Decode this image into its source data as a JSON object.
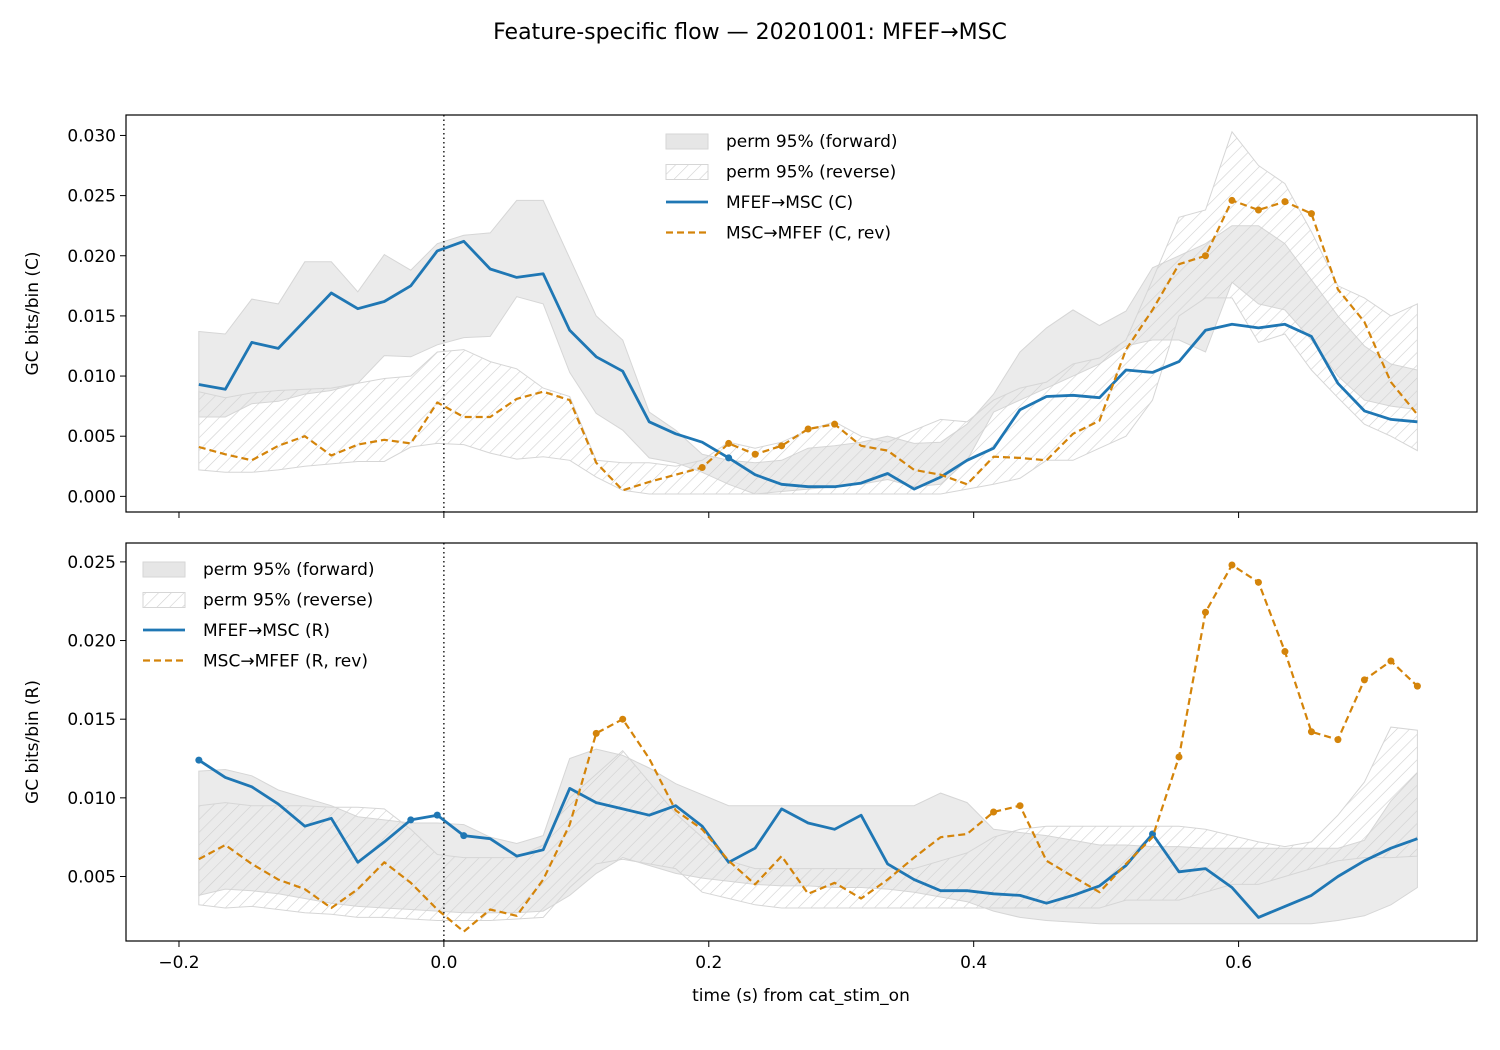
{
  "figure": {
    "title": "Feature-specific flow — 20201001: MFEF→MSC",
    "xlabel": "time (s) from cat_stim_on"
  },
  "colors": {
    "forward": "#1f77b4",
    "reverse": "#d4840a",
    "band_fill": "#e6e6e6",
    "band_edge": "#d6d6d6",
    "hatch": "#cfcfcf"
  },
  "chart_data": [
    {
      "type": "line",
      "panel": "top",
      "ylabel": "GC bits/bin (C)",
      "xlim": [
        -0.24,
        0.78
      ],
      "ylim": [
        -0.0013,
        0.0317
      ],
      "xticks": [
        -0.2,
        0.0,
        0.2,
        0.4,
        0.6
      ],
      "xtick_labels": [
        "−0.2",
        "0.0",
        "0.2",
        "0.4",
        "0.6"
      ],
      "show_xtick_labels": false,
      "yticks": [
        0.0,
        0.005,
        0.01,
        0.015,
        0.02,
        0.025,
        0.03
      ],
      "ytick_labels": [
        "0.000",
        "0.005",
        "0.010",
        "0.015",
        "0.020",
        "0.025",
        "0.030"
      ],
      "vline_x": 0.0,
      "legend_position": "upper center",
      "x": [
        -0.185,
        -0.165,
        -0.145,
        -0.125,
        -0.105,
        -0.085,
        -0.065,
        -0.045,
        -0.025,
        -0.005,
        0.015,
        0.035,
        0.055,
        0.075,
        0.095,
        0.115,
        0.135,
        0.155,
        0.175,
        0.195,
        0.215,
        0.235,
        0.255,
        0.275,
        0.295,
        0.315,
        0.335,
        0.355,
        0.375,
        0.395,
        0.415,
        0.435,
        0.455,
        0.475,
        0.495,
        0.515,
        0.535,
        0.555,
        0.575,
        0.595,
        0.615,
        0.635,
        0.655,
        0.675,
        0.695,
        0.715,
        0.735
      ],
      "bands": [
        {
          "label": "perm 95% (forward)",
          "style": "fill",
          "lower": [
            0.0066,
            0.0066,
            0.0077,
            0.0079,
            0.0085,
            0.0088,
            0.0094,
            0.0117,
            0.0116,
            0.0126,
            0.0132,
            0.0133,
            0.0166,
            0.016,
            0.0103,
            0.0069,
            0.0055,
            0.0032,
            0.0028,
            0.002,
            0.001,
            0.0002,
            0.0004,
            0.0006,
            0.0008,
            0.001,
            0.0014,
            0.0008,
            0.001,
            0.003,
            0.007,
            0.008,
            0.009,
            0.01,
            0.011,
            0.0125,
            0.013,
            0.013,
            0.012,
            0.0178,
            0.016,
            0.0155,
            0.013,
            0.01,
            0.008,
            0.0075,
            0.0072
          ],
          "upper": [
            0.0137,
            0.0135,
            0.0164,
            0.016,
            0.0195,
            0.0195,
            0.017,
            0.0201,
            0.0188,
            0.021,
            0.0217,
            0.0219,
            0.0246,
            0.0246,
            0.0198,
            0.015,
            0.013,
            0.007,
            0.0055,
            0.0035,
            0.003,
            0.0028,
            0.003,
            0.004,
            0.0042,
            0.0045,
            0.005,
            0.0044,
            0.0045,
            0.006,
            0.0085,
            0.012,
            0.014,
            0.0155,
            0.0142,
            0.0154,
            0.019,
            0.02,
            0.021,
            0.0225,
            0.0225,
            0.021,
            0.018,
            0.015,
            0.0125,
            0.011,
            0.0105
          ]
        },
        {
          "label": "perm 95% (reverse)",
          "style": "hatch",
          "lower": [
            0.0022,
            0.002,
            0.002,
            0.0022,
            0.0025,
            0.0027,
            0.0029,
            0.0029,
            0.0041,
            0.0044,
            0.0043,
            0.0036,
            0.0031,
            0.0033,
            0.003,
            0.0016,
            0.0005,
            0.0002,
            0.0002,
            0.0002,
            0.0002,
            0.0002,
            0.0002,
            0.0002,
            0.0002,
            0.0002,
            0.0002,
            0.0002,
            0.0002,
            0.0006,
            0.001,
            0.0015,
            0.003,
            0.003,
            0.004,
            0.005,
            0.008,
            0.015,
            0.0165,
            0.0165,
            0.0128,
            0.0135,
            0.0105,
            0.0082,
            0.006,
            0.005,
            0.0038
          ],
          "upper": [
            0.0087,
            0.0082,
            0.0086,
            0.0088,
            0.0089,
            0.009,
            0.0094,
            0.0098,
            0.01,
            0.012,
            0.0122,
            0.0112,
            0.0106,
            0.009,
            0.0083,
            0.003,
            0.0028,
            0.0028,
            0.0025,
            0.003,
            0.0045,
            0.004,
            0.0045,
            0.0055,
            0.0062,
            0.005,
            0.0045,
            0.0055,
            0.0064,
            0.0062,
            0.008,
            0.009,
            0.0095,
            0.011,
            0.0115,
            0.013,
            0.018,
            0.0232,
            0.0238,
            0.0303,
            0.0275,
            0.026,
            0.022,
            0.0175,
            0.0165,
            0.015,
            0.016
          ]
        }
      ],
      "series": [
        {
          "name": "MFEF→MSC (C)",
          "style": "solid",
          "role": "forward",
          "values": [
            0.0093,
            0.0089,
            0.0128,
            0.0123,
            0.0146,
            0.0169,
            0.0156,
            0.0162,
            0.0175,
            0.0204,
            0.0212,
            0.0189,
            0.0182,
            0.0185,
            0.0138,
            0.0116,
            0.0104,
            0.0062,
            0.0052,
            0.0045,
            0.0032,
            0.0018,
            0.001,
            0.0008,
            0.0008,
            0.0011,
            0.0019,
            0.0006,
            0.0016,
            0.003,
            0.004,
            0.0072,
            0.0083,
            0.0084,
            0.0082,
            0.0105,
            0.0103,
            0.0112,
            0.0138,
            0.0143,
            0.014,
            0.0143,
            0.0133,
            0.0094,
            0.0071,
            0.0064,
            0.0062
          ],
          "markers": [
            20
          ]
        },
        {
          "name": "MSC→MFEF (C, rev)",
          "style": "dashed",
          "role": "reverse",
          "values": [
            0.0041,
            0.0035,
            0.003,
            0.0042,
            0.005,
            0.0034,
            0.0043,
            0.0047,
            0.0044,
            0.0078,
            0.0066,
            0.0066,
            0.0081,
            0.0087,
            0.008,
            0.0028,
            0.0005,
            0.0012,
            0.0018,
            0.0024,
            0.0044,
            0.0035,
            0.0042,
            0.0056,
            0.006,
            0.0042,
            0.0038,
            0.0022,
            0.0018,
            0.001,
            0.0033,
            0.0032,
            0.003,
            0.0052,
            0.0063,
            0.0122,
            0.0155,
            0.0193,
            0.02,
            0.0246,
            0.0238,
            0.0245,
            0.0235,
            0.0172,
            0.0145,
            0.0095,
            0.0068
          ],
          "markers": [
            19,
            20,
            21,
            22,
            23,
            24,
            38,
            39,
            40,
            41,
            42
          ]
        }
      ]
    },
    {
      "type": "line",
      "panel": "bottom",
      "ylabel": "GC bits/bin (R)",
      "xlim": [
        -0.24,
        0.78
      ],
      "ylim": [
        0.0009,
        0.0262
      ],
      "xticks": [
        -0.2,
        0.0,
        0.2,
        0.4,
        0.6
      ],
      "xtick_labels": [
        "−0.2",
        "0.0",
        "0.2",
        "0.4",
        "0.6"
      ],
      "show_xtick_labels": true,
      "yticks": [
        0.005,
        0.01,
        0.015,
        0.02,
        0.025
      ],
      "ytick_labels": [
        "0.005",
        "0.010",
        "0.015",
        "0.020",
        "0.025"
      ],
      "vline_x": 0.0,
      "legend_position": "upper left",
      "x": [
        -0.185,
        -0.165,
        -0.145,
        -0.125,
        -0.105,
        -0.085,
        -0.065,
        -0.045,
        -0.025,
        -0.005,
        0.015,
        0.035,
        0.055,
        0.075,
        0.095,
        0.115,
        0.135,
        0.155,
        0.175,
        0.195,
        0.215,
        0.235,
        0.255,
        0.275,
        0.295,
        0.315,
        0.335,
        0.355,
        0.375,
        0.395,
        0.415,
        0.435,
        0.455,
        0.475,
        0.495,
        0.515,
        0.535,
        0.555,
        0.575,
        0.595,
        0.615,
        0.635,
        0.655,
        0.675,
        0.695,
        0.715,
        0.735
      ],
      "bands": [
        {
          "label": "perm 95% (forward)",
          "style": "fill",
          "lower": [
            0.0038,
            0.0042,
            0.0041,
            0.0039,
            0.0036,
            0.0033,
            0.0031,
            0.003,
            0.0029,
            0.0028,
            0.0027,
            0.0027,
            0.0027,
            0.0028,
            0.0038,
            0.0052,
            0.0062,
            0.0057,
            0.0052,
            0.0049,
            0.0047,
            0.0045,
            0.0044,
            0.0044,
            0.0043,
            0.0043,
            0.0042,
            0.004,
            0.0037,
            0.0034,
            0.0028,
            0.0024,
            0.0022,
            0.0021,
            0.002,
            0.002,
            0.002,
            0.002,
            0.002,
            0.002,
            0.002,
            0.002,
            0.002,
            0.0022,
            0.0025,
            0.0032,
            0.0043
          ],
          "upper": [
            0.0117,
            0.0118,
            0.0114,
            0.0105,
            0.01,
            0.0095,
            0.0088,
            0.0086,
            0.0084,
            0.0084,
            0.0083,
            0.0075,
            0.0071,
            0.0076,
            0.0125,
            0.0131,
            0.0127,
            0.0119,
            0.0109,
            0.0102,
            0.0095,
            0.0095,
            0.0095,
            0.0095,
            0.0095,
            0.0095,
            0.0095,
            0.0095,
            0.0103,
            0.0097,
            0.008,
            0.0078,
            0.0076,
            0.0073,
            0.007,
            0.007,
            0.0069,
            0.0069,
            0.0068,
            0.0068,
            0.0068,
            0.0068,
            0.0068,
            0.0068,
            0.0073,
            0.0098,
            0.0116
          ]
        },
        {
          "label": "perm 95% (reverse)",
          "style": "hatch",
          "lower": [
            0.0032,
            0.003,
            0.0031,
            0.0029,
            0.0027,
            0.0026,
            0.0024,
            0.0024,
            0.0023,
            0.0022,
            0.0022,
            0.0022,
            0.0023,
            0.0024,
            0.0043,
            0.0058,
            0.0061,
            0.0058,
            0.0055,
            0.004,
            0.0036,
            0.0032,
            0.003,
            0.003,
            0.003,
            0.003,
            0.003,
            0.003,
            0.003,
            0.003,
            0.003,
            0.003,
            0.003,
            0.003,
            0.003,
            0.0035,
            0.0035,
            0.0035,
            0.004,
            0.0045,
            0.0045,
            0.005,
            0.0055,
            0.006,
            0.0062,
            0.0062,
            0.0063
          ],
          "upper": [
            0.0095,
            0.0097,
            0.0095,
            0.0095,
            0.0095,
            0.0094,
            0.0094,
            0.0093,
            0.008,
            0.0064,
            0.0062,
            0.0062,
            0.0062,
            0.007,
            0.01,
            0.0115,
            0.013,
            0.011,
            0.009,
            0.0075,
            0.006,
            0.0055,
            0.0055,
            0.0055,
            0.0055,
            0.0055,
            0.0055,
            0.0055,
            0.006,
            0.0065,
            0.0075,
            0.008,
            0.0082,
            0.0082,
            0.0082,
            0.0082,
            0.0082,
            0.0082,
            0.008,
            0.0076,
            0.0072,
            0.0069,
            0.0072,
            0.0089,
            0.011,
            0.0145,
            0.0143
          ]
        }
      ],
      "series": [
        {
          "name": "MFEF→MSC (R)",
          "style": "solid",
          "role": "forward",
          "values": [
            0.0124,
            0.0113,
            0.0107,
            0.0096,
            0.0082,
            0.0087,
            0.0059,
            0.0072,
            0.0086,
            0.0089,
            0.0076,
            0.0074,
            0.0063,
            0.0067,
            0.0106,
            0.0097,
            0.0093,
            0.0089,
            0.0095,
            0.0082,
            0.0059,
            0.0068,
            0.0093,
            0.0084,
            0.008,
            0.0089,
            0.0058,
            0.0048,
            0.0041,
            0.0041,
            0.0039,
            0.0038,
            0.0033,
            0.0038,
            0.0044,
            0.0057,
            0.0077,
            0.0053,
            0.0055,
            0.0043,
            0.0024,
            0.0031,
            0.0038,
            0.005,
            0.006,
            0.0068,
            0.0074
          ],
          "markers": [
            0,
            8,
            9,
            10,
            36
          ]
        },
        {
          "name": "MSC→MFEF (R, rev)",
          "style": "dashed",
          "role": "reverse",
          "values": [
            0.0061,
            0.007,
            0.0058,
            0.0048,
            0.0042,
            0.003,
            0.0042,
            0.0059,
            0.0046,
            0.0029,
            0.0015,
            0.0029,
            0.0025,
            0.0048,
            0.0083,
            0.0141,
            0.015,
            0.0125,
            0.0092,
            0.008,
            0.006,
            0.0045,
            0.0063,
            0.0039,
            0.0046,
            0.0036,
            0.0048,
            0.0062,
            0.0075,
            0.0077,
            0.0091,
            0.0095,
            0.006,
            0.005,
            0.004,
            0.0058,
            0.0075,
            0.0126,
            0.0218,
            0.0248,
            0.0237,
            0.0193,
            0.0142,
            0.0137,
            0.0175,
            0.0187,
            0.0171
          ],
          "markers": [
            15,
            16,
            30,
            31,
            37,
            38,
            39,
            40,
            41,
            42,
            43,
            44,
            45,
            46
          ]
        }
      ]
    }
  ]
}
